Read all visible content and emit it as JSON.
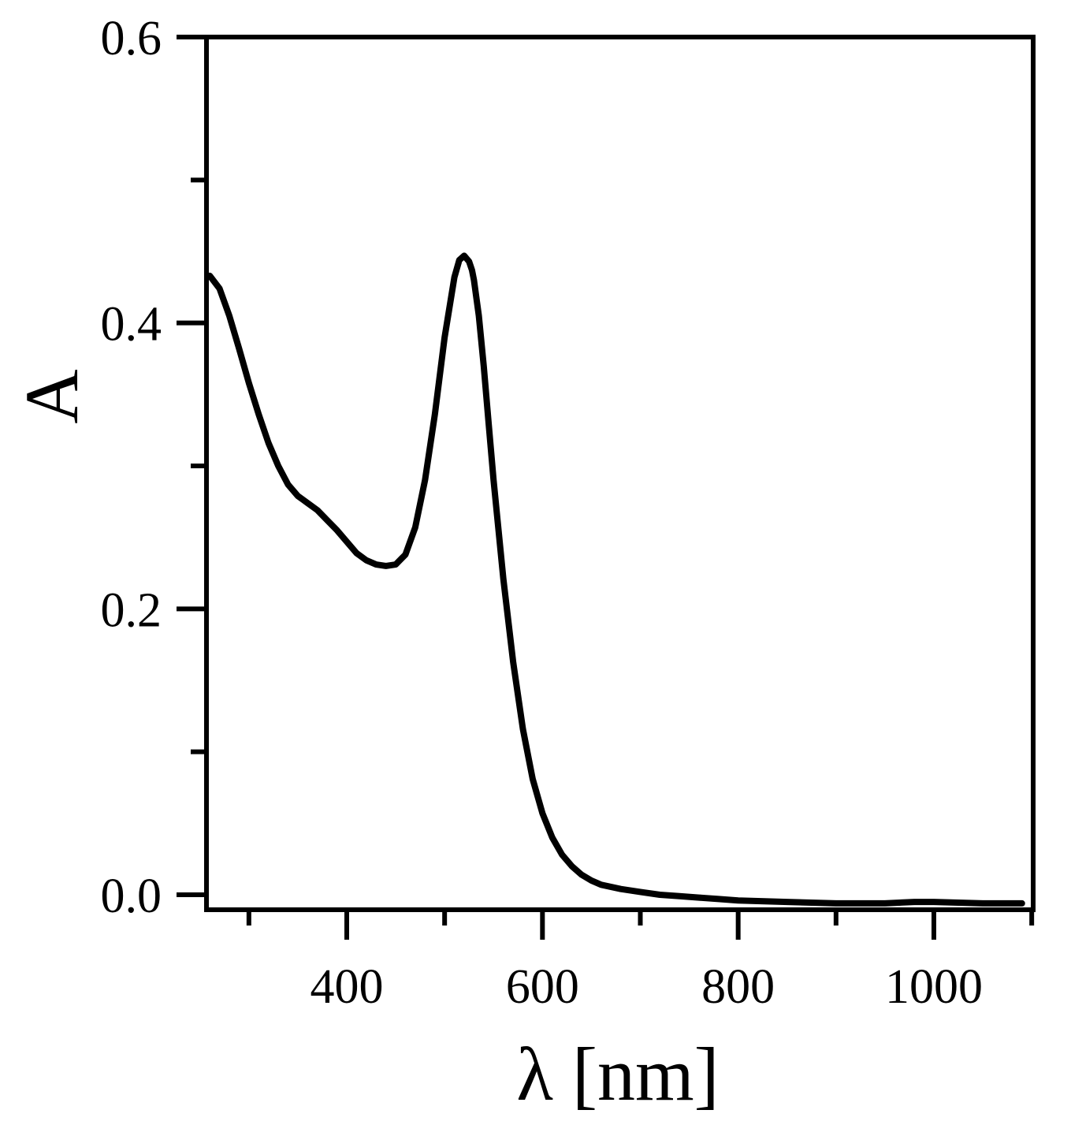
{
  "chart_data": {
    "type": "line",
    "xlabel": "λ [nm]",
    "ylabel": "A",
    "xlim": [
      260,
      1100
    ],
    "ylim": [
      -0.006,
      0.6
    ],
    "x_ticks_major": [
      400,
      600,
      800,
      1000
    ],
    "x_ticks_minor": [
      300,
      500,
      700,
      900,
      1100
    ],
    "y_ticks_major": [
      0.0,
      0.2,
      0.4,
      0.6
    ],
    "y_ticks_minor": [
      0.1,
      0.3,
      0.5
    ],
    "x_tick_labels": [
      "400",
      "600",
      "800",
      "1000"
    ],
    "y_tick_labels": [
      "0.0",
      "0.2",
      "0.4",
      "0.6"
    ],
    "grid": false,
    "line_color": "#000000",
    "series": [
      {
        "x": [
          260,
          270,
          280,
          290,
          300,
          310,
          320,
          330,
          340,
          350,
          360,
          370,
          380,
          390,
          400,
          410,
          420,
          430,
          440,
          450,
          460,
          470,
          480,
          490,
          500,
          510,
          515,
          520,
          525,
          528,
          530,
          535,
          540,
          545,
          550,
          560,
          570,
          580,
          590,
          600,
          610,
          620,
          630,
          640,
          650,
          660,
          680,
          700,
          720,
          740,
          760,
          780,
          800,
          850,
          900,
          950,
          980,
          1000,
          1050,
          1090
        ],
        "y": [
          0.433,
          0.424,
          0.405,
          0.382,
          0.358,
          0.336,
          0.316,
          0.3,
          0.287,
          0.279,
          0.274,
          0.269,
          0.262,
          0.255,
          0.247,
          0.239,
          0.234,
          0.231,
          0.23,
          0.231,
          0.238,
          0.257,
          0.29,
          0.336,
          0.39,
          0.432,
          0.444,
          0.447,
          0.443,
          0.437,
          0.43,
          0.405,
          0.37,
          0.33,
          0.29,
          0.221,
          0.163,
          0.116,
          0.081,
          0.057,
          0.04,
          0.028,
          0.02,
          0.014,
          0.01,
          0.007,
          0.004,
          0.002,
          0.0,
          -0.001,
          -0.002,
          -0.003,
          -0.004,
          -0.005,
          -0.006,
          -0.006,
          -0.005,
          -0.005,
          -0.006,
          -0.006
        ]
      }
    ]
  }
}
